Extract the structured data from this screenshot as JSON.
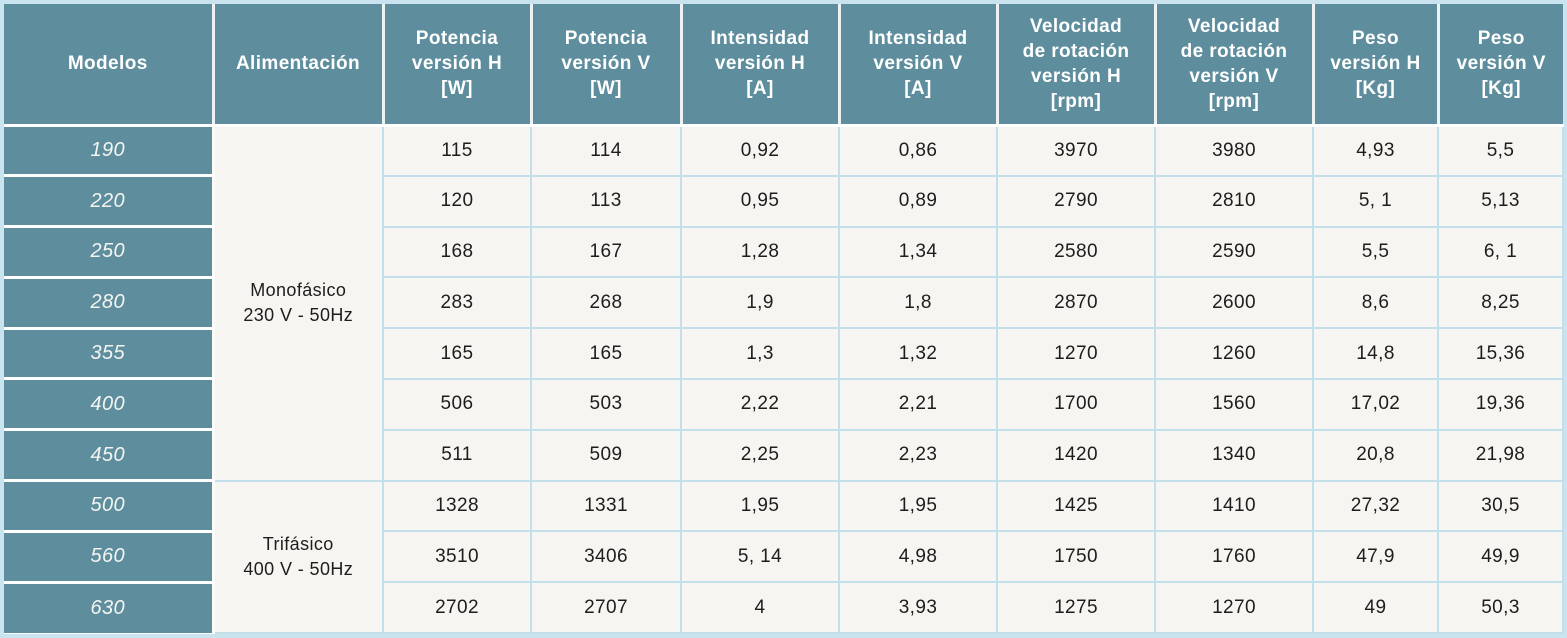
{
  "colors": {
    "header_teal": "#5E8E9D",
    "cell_background": "#F7F5F1",
    "grid_blue": "#C3DFEA",
    "divider_white": "#FFFFFF",
    "header_text": "#FFFFFF",
    "data_text": "#1D1D1B"
  },
  "header": {
    "cells": [
      "Modelos",
      "Alimentación",
      "Potencia\nversión H\n[W]",
      "Potencia\nversión V\n[W]",
      "Intensidad\nversión H\n[A]",
      "Intensidad\nversión V\n[A]",
      "Velocidad\nde rotación\nversión H\n[rpm]",
      "Velocidad\nde rotación\nversión V\n[rpm]",
      "Peso\nversión H\n[Kg]",
      "Peso\nversión V\n[Kg]"
    ]
  },
  "alimentacion_groups": [
    {
      "label": "Monofásico\n230 V - 50Hz",
      "row_span": 7
    },
    {
      "label": "Trifásico\n400 V - 50Hz",
      "row_span": 3
    }
  ],
  "rows": [
    {
      "model": "190",
      "potencia_h": "115",
      "potencia_v": "114",
      "intensidad_h": "0,92",
      "intensidad_v": "0,86",
      "velocidad_h": "3970",
      "velocidad_v": "3980",
      "peso_h": "4,93",
      "peso_v": "5,5"
    },
    {
      "model": "220",
      "potencia_h": "120",
      "potencia_v": "113",
      "intensidad_h": "0,95",
      "intensidad_v": "0,89",
      "velocidad_h": "2790",
      "velocidad_v": "2810",
      "peso_h": "5, 1",
      "peso_v": "5,13"
    },
    {
      "model": "250",
      "potencia_h": "168",
      "potencia_v": "167",
      "intensidad_h": "1,28",
      "intensidad_v": "1,34",
      "velocidad_h": "2580",
      "velocidad_v": "2590",
      "peso_h": "5,5",
      "peso_v": "6, 1"
    },
    {
      "model": "280",
      "potencia_h": "283",
      "potencia_v": "268",
      "intensidad_h": "1,9",
      "intensidad_v": "1,8",
      "velocidad_h": "2870",
      "velocidad_v": "2600",
      "peso_h": "8,6",
      "peso_v": "8,25"
    },
    {
      "model": "355",
      "potencia_h": "165",
      "potencia_v": "165",
      "intensidad_h": "1,3",
      "intensidad_v": "1,32",
      "velocidad_h": "1270",
      "velocidad_v": "1260",
      "peso_h": "14,8",
      "peso_v": "15,36"
    },
    {
      "model": "400",
      "potencia_h": "506",
      "potencia_v": "503",
      "intensidad_h": "2,22",
      "intensidad_v": "2,21",
      "velocidad_h": "1700",
      "velocidad_v": "1560",
      "peso_h": "17,02",
      "peso_v": "19,36"
    },
    {
      "model": "450",
      "potencia_h": "511",
      "potencia_v": "509",
      "intensidad_h": "2,25",
      "intensidad_v": "2,23",
      "velocidad_h": "1420",
      "velocidad_v": "1340",
      "peso_h": "20,8",
      "peso_v": "21,98"
    },
    {
      "model": "500",
      "potencia_h": "1328",
      "potencia_v": "1331",
      "intensidad_h": "1,95",
      "intensidad_v": "1,95",
      "velocidad_h": "1425",
      "velocidad_v": "1410",
      "peso_h": "27,32",
      "peso_v": "30,5"
    },
    {
      "model": "560",
      "potencia_h": "3510",
      "potencia_v": "3406",
      "intensidad_h": "5, 14",
      "intensidad_v": "4,98",
      "velocidad_h": "1750",
      "velocidad_v": "1760",
      "peso_h": "47,9",
      "peso_v": "49,9"
    },
    {
      "model": "630",
      "potencia_h": "2702",
      "potencia_v": "2707",
      "intensidad_h": "4",
      "intensidad_v": "3,93",
      "velocidad_h": "1275",
      "velocidad_v": "1270",
      "peso_h": "49",
      "peso_v": "50,3"
    }
  ]
}
